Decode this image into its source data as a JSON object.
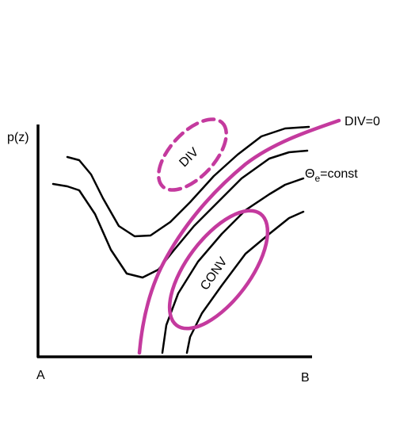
{
  "labels": {
    "y_axis": "p(z)",
    "x_start": "A",
    "x_end": "B",
    "div_line": "DIV=0",
    "isentrope": {
      "symbol": "Θ",
      "subscript": "e",
      "rest": "=const"
    },
    "div_region": "DIV",
    "conv_region": "CONV"
  }
}
